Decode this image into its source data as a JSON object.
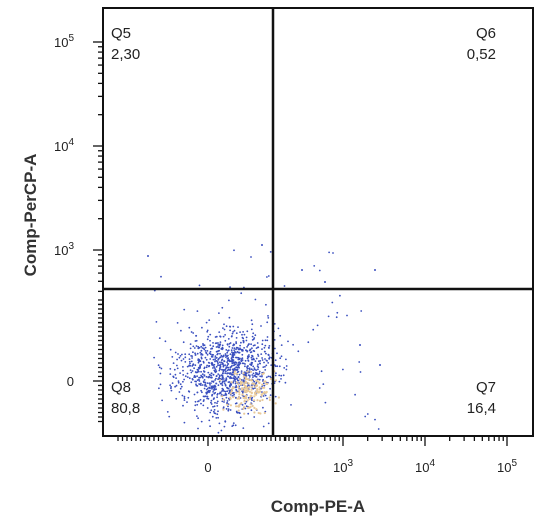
{
  "chart_data": {
    "type": "scatter",
    "title": "",
    "xlabel": "Comp-PE-A",
    "ylabel": "Comp-PerCP-A",
    "x_scale": "biexponential",
    "y_scale": "biexponential",
    "x_ticks": [
      {
        "value": "0",
        "text": "0",
        "sup": ""
      },
      {
        "value": "1e3",
        "text": "10",
        "sup": "3"
      },
      {
        "value": "1e4",
        "text": "10",
        "sup": "4"
      },
      {
        "value": "1e5",
        "text": "10",
        "sup": "5"
      }
    ],
    "y_ticks": [
      {
        "value": "0",
        "text": "0",
        "sup": ""
      },
      {
        "value": "1e3",
        "text": "10",
        "sup": "3"
      },
      {
        "value": "1e4",
        "text": "10",
        "sup": "4"
      },
      {
        "value": "1e5",
        "text": "10",
        "sup": "5"
      }
    ],
    "gates": [
      {
        "name": "Q5",
        "percent": "2,30",
        "position": "top-left"
      },
      {
        "name": "Q6",
        "percent": "0,52",
        "position": "top-right"
      },
      {
        "name": "Q7",
        "percent": "16,4",
        "position": "bottom-right"
      },
      {
        "name": "Q8",
        "percent": "80,8",
        "position": "bottom-left"
      }
    ],
    "event_color": "#3a4fbf",
    "event_highlight_color": "#e8c99a",
    "grid": false
  }
}
